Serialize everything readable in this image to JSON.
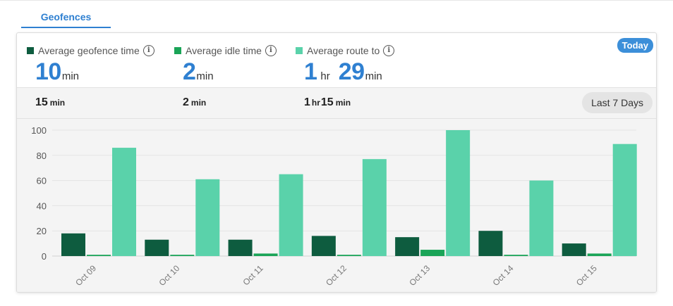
{
  "tabs": {
    "active_label": "Geofences"
  },
  "range": {
    "today_label": "Today",
    "period_label": "Last 7 Days"
  },
  "metrics": [
    {
      "label": "Average geofence time",
      "color": "#0e5c3f",
      "value": "10",
      "unit": "min",
      "prev_value": "15",
      "prev_unit": "min"
    },
    {
      "label": "Average idle time",
      "color": "#1aa457",
      "value": "2",
      "unit": "min",
      "prev_value": "2",
      "prev_unit": "min"
    },
    {
      "label": "Average route to",
      "color": "#5ad2aa",
      "value_hr": "1",
      "hr_unit": "hr",
      "value_min": "29",
      "min_unit": "min",
      "prev_hr": "1",
      "prev_hr_unit": "hr",
      "prev_min": "15",
      "prev_min_unit": "min"
    }
  ],
  "chart_data": {
    "type": "bar",
    "categories": [
      "Oct 09",
      "Oct 10",
      "Oct 11",
      "Oct 12",
      "Oct 13",
      "Oct 14",
      "Oct 15"
    ],
    "series": [
      {
        "name": "Average geofence time",
        "color": "#0e5c3f",
        "values": [
          18,
          13,
          13,
          16,
          15,
          20,
          10
        ]
      },
      {
        "name": "Average idle time",
        "color": "#1aa457",
        "values": [
          1,
          1,
          2,
          1,
          5,
          1,
          2
        ]
      },
      {
        "name": "Average route to",
        "color": "#5ad2aa",
        "values": [
          86,
          61,
          65,
          77,
          100,
          60,
          89
        ]
      }
    ],
    "ylim": [
      0,
      100
    ],
    "yticks": [
      0,
      20,
      40,
      60,
      80,
      100
    ],
    "grid": true
  }
}
